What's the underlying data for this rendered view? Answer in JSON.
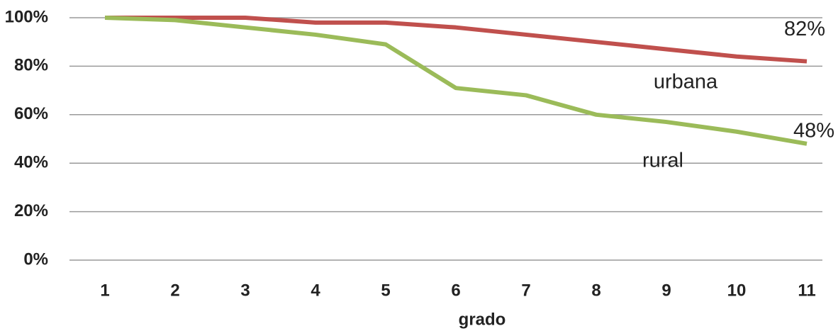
{
  "chart_data": {
    "type": "line",
    "x_label": "grado",
    "categories": [
      "1",
      "2",
      "3",
      "4",
      "5",
      "6",
      "7",
      "8",
      "9",
      "10",
      "11"
    ],
    "series": [
      {
        "name": "urbana",
        "color": "#c0504d",
        "values": [
          100,
          100,
          100,
          98,
          98,
          96,
          93,
          90,
          87,
          84,
          82
        ],
        "value_labels": [
          null,
          null,
          null,
          null,
          null,
          null,
          null,
          null,
          null,
          null,
          "82%"
        ]
      },
      {
        "name": "rural",
        "color": "#9bbb59",
        "values": [
          100,
          99,
          96,
          93,
          89,
          71,
          68,
          60,
          57,
          53,
          48
        ],
        "value_labels": [
          null,
          null,
          null,
          null,
          null,
          null,
          null,
          null,
          null,
          null,
          "48%"
        ]
      }
    ],
    "ylim": [
      0,
      100
    ],
    "yticks": [
      {
        "value": 0,
        "label": "0%"
      },
      {
        "value": 20,
        "label": "20%"
      },
      {
        "value": 40,
        "label": "40%"
      },
      {
        "value": 60,
        "label": "60%"
      },
      {
        "value": 80,
        "label": "80%"
      },
      {
        "value": 100,
        "label": "100%"
      }
    ],
    "grid": true
  }
}
